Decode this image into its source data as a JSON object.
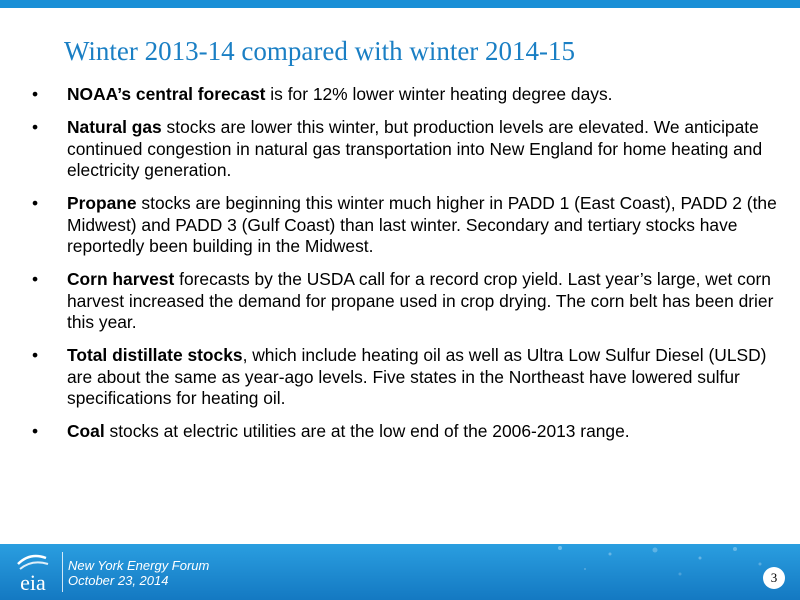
{
  "slide": {
    "title": "Winter 2013-14 compared with winter 2014-15",
    "bullet_marker": "•",
    "bullets": [
      {
        "bold": "NOAA’s central forecast",
        "text": " is for 12% lower winter heating degree days."
      },
      {
        "bold": "Natural gas",
        "text": " stocks are lower this winter, but production levels are elevated. We anticipate continued congestion in natural gas transportation into New England for home heating and electricity generation."
      },
      {
        "bold": "Propane",
        "text": " stocks are beginning this winter much higher in PADD 1 (East Coast), PADD 2 (the Midwest) and PADD 3 (Gulf Coast) than last winter. Secondary and tertiary stocks have reportedly been building in the Midwest."
      },
      {
        "bold": "Corn harvest",
        "text": " forecasts by the USDA call for a record crop yield.  Last year’s large, wet corn harvest increased the demand for propane used in crop drying. The corn belt has been drier this year."
      },
      {
        "bold": "Total distillate stocks",
        "text": ", which include heating oil as well as Ultra Low Sulfur Diesel (ULSD) are about the same as year-ago levels.  Five states in the Northeast have lowered sulfur specifications for heating oil."
      },
      {
        "bold": "Coal",
        "text": " stocks at electric utilities are at the low end of the 2006-2013 range."
      }
    ]
  },
  "footer": {
    "logo_text": "eia",
    "event": "New York Energy Forum",
    "date": "October 23, 2014",
    "page_number": "3"
  },
  "colors": {
    "accent": "#1a8fd6",
    "title": "#1a7fc4"
  }
}
